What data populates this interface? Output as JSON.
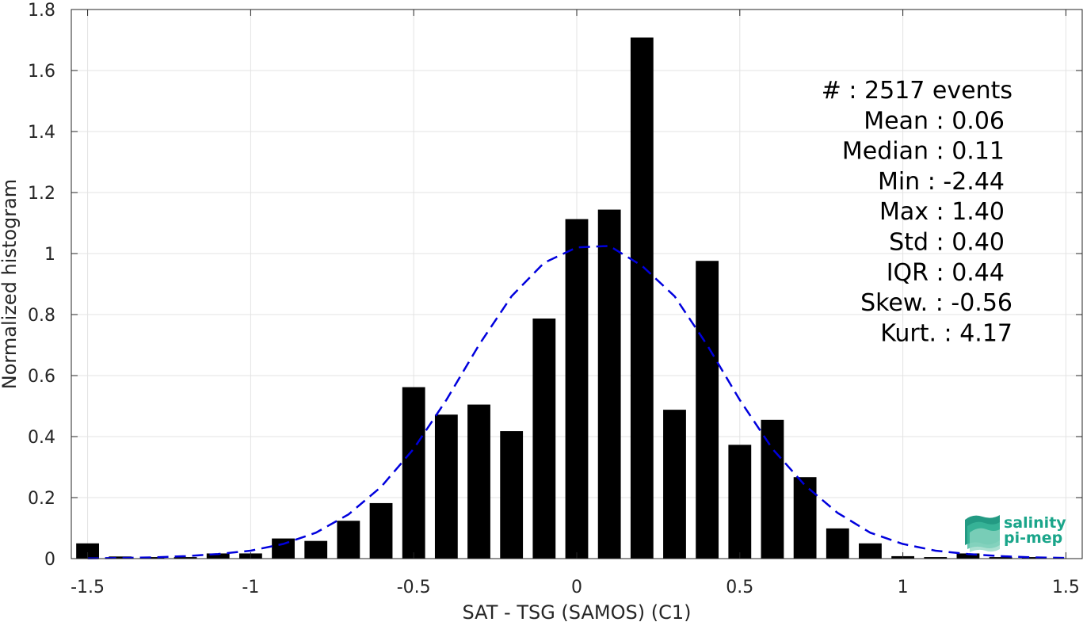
{
  "chart_data": {
    "type": "bar",
    "xlabel": "SAT - TSG (SAMOS) (C1)",
    "ylabel": "Normalized histogram",
    "xlim": [
      -1.55,
      1.55
    ],
    "ylim": [
      0,
      1.8
    ],
    "xticks": [
      -1.5,
      -1,
      -0.5,
      0,
      0.5,
      1,
      1.5
    ],
    "xtick_labels": [
      "-1.5",
      "-1",
      "-0.5",
      "0",
      "0.5",
      "1",
      "1.5"
    ],
    "yticks": [
      0,
      0.2,
      0.4,
      0.6,
      0.8,
      1,
      1.2,
      1.4,
      1.6,
      1.8
    ],
    "ytick_labels": [
      "0",
      "0.2",
      "0.4",
      "0.6",
      "0.8",
      "1",
      "1.2",
      "1.4",
      "1.6",
      "1.8"
    ],
    "grid": true,
    "bar_width": 0.07,
    "bars": {
      "x": [
        -1.5,
        -1.4,
        -1.3,
        -1.2,
        -1.1,
        -1.0,
        -0.9,
        -0.8,
        -0.7,
        -0.6,
        -0.5,
        -0.4,
        -0.3,
        -0.2,
        -0.1,
        0.0,
        0.1,
        0.2,
        0.3,
        0.4,
        0.5,
        0.6,
        0.7,
        0.8,
        0.9,
        1.0,
        1.1,
        1.2,
        1.3,
        1.4
      ],
      "values": [
        0.05,
        0.007,
        0.005,
        0.005,
        0.017,
        0.017,
        0.066,
        0.058,
        0.124,
        0.182,
        0.562,
        0.472,
        0.505,
        0.418,
        0.787,
        1.113,
        1.144,
        1.708,
        0.488,
        0.976,
        0.373,
        0.455,
        0.267,
        0.099,
        0.05,
        0.008,
        0.005,
        0.017,
        0.005,
        0.005
      ],
      "color": "#000000"
    },
    "fit_curve": {
      "style": "dashed",
      "color": "#0000dd",
      "x": [
        -1.5,
        -1.4,
        -1.3,
        -1.2,
        -1.1,
        -1.0,
        -0.9,
        -0.8,
        -0.7,
        -0.6,
        -0.5,
        -0.4,
        -0.3,
        -0.2,
        -0.1,
        0.0,
        0.1,
        0.2,
        0.3,
        0.4,
        0.5,
        0.6,
        0.7,
        0.8,
        0.9,
        1.0,
        1.1,
        1.2,
        1.3,
        1.4,
        1.5
      ],
      "y": [
        0.001,
        0.002,
        0.004,
        0.008,
        0.015,
        0.026,
        0.048,
        0.085,
        0.145,
        0.235,
        0.36,
        0.52,
        0.7,
        0.86,
        0.97,
        1.02,
        1.025,
        0.96,
        0.86,
        0.7,
        0.52,
        0.36,
        0.24,
        0.15,
        0.085,
        0.048,
        0.026,
        0.015,
        0.008,
        0.004,
        0.002
      ]
    },
    "stats": [
      "#  : 2517 events",
      "Mean : 0.06",
      "Median : 0.11",
      "Min : -2.44",
      "Max : 1.40",
      "Std : 0.40",
      "IQR : 0.44",
      "Skew. : -0.56",
      "Kurt. : 4.17"
    ]
  },
  "logo": {
    "line1": "salinity",
    "line2": "pi-mep",
    "color": "#1aa58a"
  }
}
